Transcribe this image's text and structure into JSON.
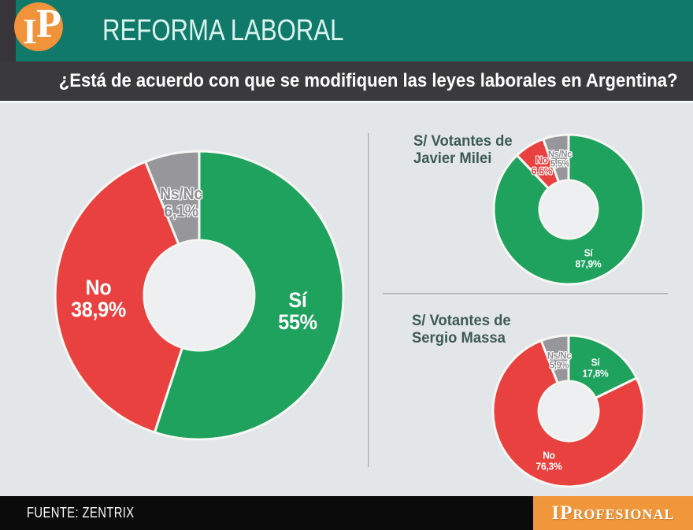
{
  "header": {
    "logo_i": "I",
    "logo_p": "P",
    "title": "REFORMA LABORAL",
    "question": "¿Está de acuerdo con que se modifiquen las leyes laborales en Argentina?"
  },
  "colors": {
    "teal": "#11796a",
    "dark_bar": "#3a393c",
    "content_bg": "#e3e6e9",
    "donut_hole": "#edeff1",
    "green": "#1ea25e",
    "red": "#e94140",
    "gray": "#97979b",
    "logo_orange": "#f0933a",
    "brand_orange": "#f0973b",
    "chart_title_text": "#3d5a52"
  },
  "chart_data": [
    {
      "id": "total",
      "type": "donut",
      "title": "",
      "legend_position": "none",
      "slices": [
        {
          "label": "Sí",
          "value": 55,
          "display": "55%",
          "color": "#1ea25e",
          "text_color": "#ffffff",
          "outlined": false,
          "label_r": 0.69,
          "label_size": 27
        },
        {
          "label": "No",
          "value": 38.9,
          "display": "38,9%",
          "color": "#e94140",
          "text_color": "#ffffff",
          "outlined": false,
          "label_r": 0.7,
          "label_size": 27
        },
        {
          "label": "Ns/Nc",
          "value": 6.1,
          "display": "6,1%",
          "color": "#97979b",
          "text_color": "#8f8f93",
          "outlined": true,
          "label_r": 0.65,
          "label_size": 21
        }
      ]
    },
    {
      "id": "milei",
      "type": "donut",
      "title": "S/ Votantes de\nJavier Milei",
      "legend_position": "none",
      "slices": [
        {
          "label": "Sí",
          "value": 87.9,
          "display": "87,9%",
          "color": "#1ea25e",
          "text_color": "#ffffff",
          "outlined": false,
          "label_r": 0.7,
          "label_size": 13
        },
        {
          "label": "No",
          "value": 6.6,
          "display": "6,6%",
          "color": "#e94140",
          "text_color": "#e84040",
          "outlined": true,
          "label_r": 0.69,
          "label_size": 13
        },
        {
          "label": "Ns/Nc",
          "value": 5.5,
          "display": "5,5%",
          "color": "#97979b",
          "text_color": "#8f8f93",
          "outlined": true,
          "label_r": 0.68,
          "label_size": 12
        }
      ]
    },
    {
      "id": "massa",
      "type": "donut",
      "title": "S/ Votantes de\nSergio Massa",
      "legend_position": "none",
      "slices": [
        {
          "label": "Sí",
          "value": 17.8,
          "display": "17,8%",
          "color": "#1ea25e",
          "text_color": "#ffffff",
          "outlined": false,
          "label_r": 0.67,
          "label_size": 13
        },
        {
          "label": "No",
          "value": 76.3,
          "display": "76,3%",
          "color": "#e94140",
          "text_color": "#ffffff",
          "outlined": false,
          "label_r": 0.7,
          "label_size": 13
        },
        {
          "label": "Ns/Nc",
          "value": 5.9,
          "display": "5,9%",
          "color": "#97979b",
          "text_color": "#8f8f93",
          "outlined": true,
          "label_r": 0.68,
          "label_size": 12
        }
      ]
    }
  ],
  "footer": {
    "source": "FUENTE: ZENTRIX",
    "brand_big": "IP",
    "brand_small": "ROFESIONAL"
  }
}
